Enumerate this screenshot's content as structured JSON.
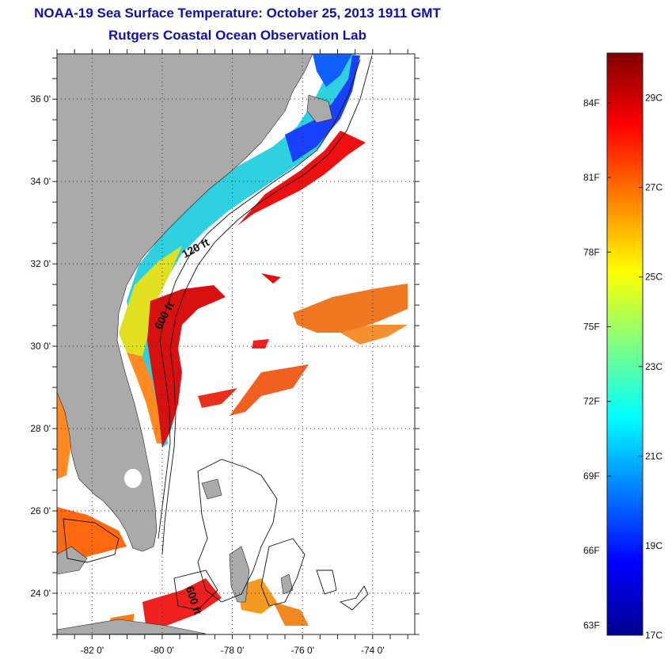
{
  "header": {
    "title": "NOAA-19 Sea Surface Temperature:  October 25, 2013 1911 GMT",
    "subtitle": "Rutgers Coastal Ocean Observation Lab"
  },
  "map": {
    "lat_range": [
      23,
      37.1
    ],
    "lon_range": [
      -83,
      -72.8
    ],
    "lat_labels": [
      {
        "value": 36,
        "text": "36 0'"
      },
      {
        "value": 34,
        "text": "34 0'"
      },
      {
        "value": 32,
        "text": "32 0'"
      },
      {
        "value": 30,
        "text": "30 0'"
      },
      {
        "value": 28,
        "text": "28 0'"
      },
      {
        "value": 26,
        "text": "26 0'"
      },
      {
        "value": 24,
        "text": "24 0'"
      }
    ],
    "lon_labels": [
      {
        "value": -82,
        "text": "-82 0'"
      },
      {
        "value": -80,
        "text": "-80 0'"
      },
      {
        "value": -78,
        "text": "-78 0'"
      },
      {
        "value": -76,
        "text": "-76 0'"
      },
      {
        "value": -74,
        "text": "-74 0'"
      }
    ],
    "contour_labels": [
      {
        "text": "120 ft",
        "lon": -79.0,
        "lat": 32.3,
        "rotate": -28
      },
      {
        "text": "600 ft",
        "lon": -79.85,
        "lat": 30.7,
        "rotate": -62
      },
      {
        "text": "600 ft",
        "lon": -79.2,
        "lat": 23.8,
        "rotate": 72
      }
    ],
    "colors": {
      "land": "#aaaaaa",
      "ocean": "#ffffff",
      "grid": "#333333"
    }
  },
  "colorbar": {
    "min_c": 17,
    "max_c": 30,
    "celsius_ticks": [
      {
        "value": 29,
        "text": "29C"
      },
      {
        "value": 27,
        "text": "27C"
      },
      {
        "value": 25,
        "text": "25C"
      },
      {
        "value": 23,
        "text": "23C"
      },
      {
        "value": 21,
        "text": "21C"
      },
      {
        "value": 19,
        "text": "19C"
      },
      {
        "value": 17,
        "text": "17C"
      }
    ],
    "fahrenheit_ticks": [
      {
        "value": 84,
        "text": "84F"
      },
      {
        "value": 81,
        "text": "81F"
      },
      {
        "value": 78,
        "text": "78F"
      },
      {
        "value": 75,
        "text": "75F"
      },
      {
        "value": 72,
        "text": "72F"
      },
      {
        "value": 69,
        "text": "69F"
      },
      {
        "value": 66,
        "text": "66F"
      },
      {
        "value": 63,
        "text": "63F"
      }
    ],
    "gradient_stops": [
      "#00008f",
      "#0000ff",
      "#0080ff",
      "#00ffff",
      "#80ff80",
      "#ffff00",
      "#ff8000",
      "#ff0000",
      "#800000"
    ]
  }
}
